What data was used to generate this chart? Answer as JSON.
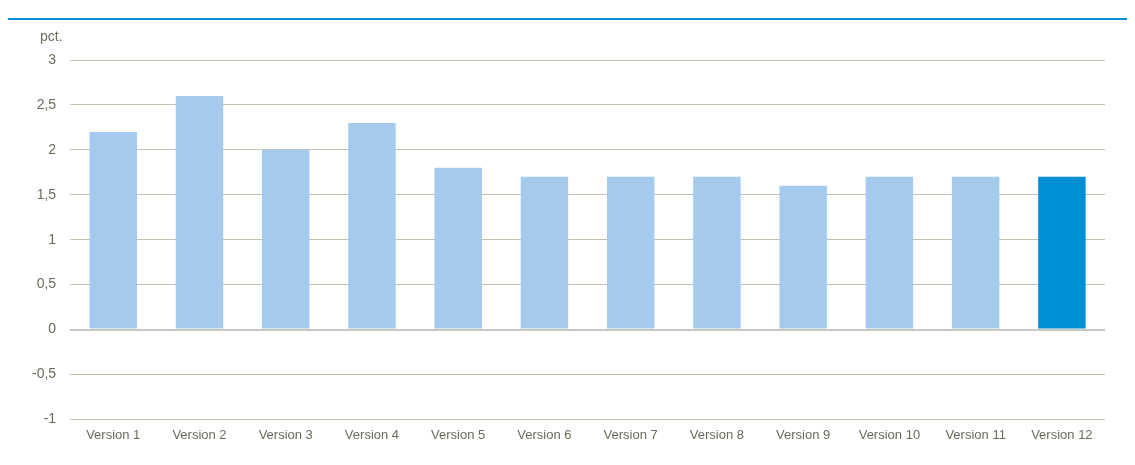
{
  "chart_data": {
    "type": "bar",
    "ylabel": "pct.",
    "categories": [
      "Version 1",
      "Version 2",
      "Version 3",
      "Version 4",
      "Version 5",
      "Version 6",
      "Version 7",
      "Version 8",
      "Version 9",
      "Version 10",
      "Version 11",
      "Version 12"
    ],
    "values": [
      2.2,
      2.6,
      2.0,
      2.3,
      1.8,
      1.7,
      1.7,
      1.7,
      1.6,
      1.7,
      1.7,
      1.7
    ],
    "colors": [
      "#a4caee",
      "#a4caee",
      "#a4caee",
      "#a4caee",
      "#a4caee",
      "#a4caee",
      "#a4caee",
      "#a4caee",
      "#a4caee",
      "#a4caee",
      "#a4caee",
      "#0090d6"
    ],
    "ylim": [
      -1,
      3
    ],
    "yticks": [
      {
        "value": -1,
        "label": "-1"
      },
      {
        "value": -0.5,
        "label": "-0,5"
      },
      {
        "value": 0,
        "label": "0"
      },
      {
        "value": 0.5,
        "label": "0,5"
      },
      {
        "value": 1,
        "label": "1"
      },
      {
        "value": 1.5,
        "label": "1,5"
      },
      {
        "value": 2,
        "label": "2"
      },
      {
        "value": 2.5,
        "label": "2,5"
      },
      {
        "value": 3,
        "label": "3"
      }
    ],
    "grid": "y",
    "legend": false
  }
}
